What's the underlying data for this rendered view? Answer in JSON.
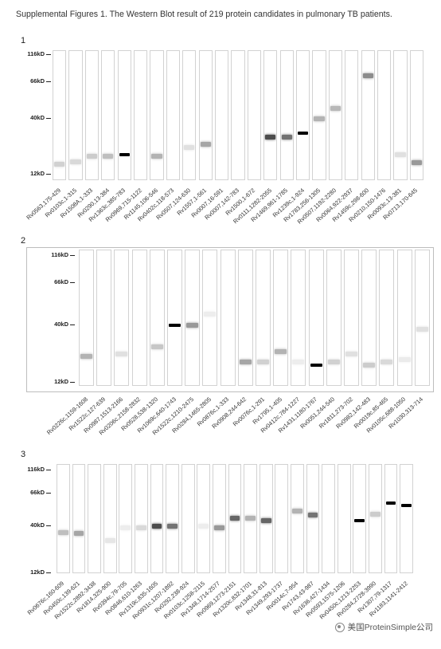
{
  "caption": "Supplemental Figures 1. The Western Blot result of 219 protein candidates in pulmonary TB patients.",
  "watermark": "美国ProteinSimple公司",
  "panels": [
    {
      "number": "1",
      "ladder": [
        "116kD",
        "66kD",
        "40kD",
        "12kD"
      ],
      "lanes": [
        {
          "label": "Rv0563,175-429",
          "bands": [
            {
              "pos": 0.87,
              "intensity": 0.18
            }
          ]
        },
        {
          "label": "Rv0103c,1-315",
          "bands": [
            {
              "pos": 0.85,
              "intensity": 0.15
            }
          ]
        },
        {
          "label": "Rv1508A,1-333",
          "bands": [
            {
              "pos": 0.81,
              "intensity": 0.2
            }
          ]
        },
        {
          "label": "Rv0290,13-384",
          "bands": [
            {
              "pos": 0.81,
              "intensity": 0.25
            }
          ]
        },
        {
          "label": "Rv1363c,385-783",
          "bands": [
            {
              "pos": 0.8,
              "intensity": 1.0
            }
          ]
        },
        {
          "label": "Rv0969,715-1122",
          "bands": []
        },
        {
          "label": "Rv1145,106-546",
          "bands": [
            {
              "pos": 0.81,
              "intensity": 0.3
            }
          ]
        },
        {
          "label": "Rv0402c,118-573",
          "bands": []
        },
        {
          "label": "Rv0507,124-630",
          "bands": [
            {
              "pos": 0.74,
              "intensity": 0.12
            }
          ]
        },
        {
          "label": "Rv1557,1-561",
          "bands": [
            {
              "pos": 0.72,
              "intensity": 0.35
            }
          ]
        },
        {
          "label": "Rv0007,16-591",
          "bands": []
        },
        {
          "label": "Rv0007,142-783",
          "bands": []
        },
        {
          "label": "Rv1500,1-672",
          "bands": []
        },
        {
          "label": "Rv0111,1282-2055",
          "bands": [
            {
              "pos": 0.66,
              "intensity": 0.7
            }
          ]
        },
        {
          "label": "Rv1469,961-1785",
          "bands": [
            {
              "pos": 0.66,
              "intensity": 0.55
            }
          ]
        },
        {
          "label": "Rv1239c,1-924",
          "bands": [
            {
              "pos": 0.63,
              "intensity": 1.0
            }
          ]
        },
        {
          "label": "Rv1783,256-1305",
          "bands": [
            {
              "pos": 0.52,
              "intensity": 0.3
            }
          ]
        },
        {
          "label": "Rv0507,1192-2280",
          "bands": [
            {
              "pos": 0.44,
              "intensity": 0.28
            }
          ]
        },
        {
          "label": "Rv0064,922-2937",
          "bands": []
        },
        {
          "label": "Rv1459c,298-600",
          "bands": [
            {
              "pos": 0.19,
              "intensity": 0.45
            }
          ]
        },
        {
          "label": "Rv0210,150-1476",
          "bands": []
        },
        {
          "label": "Rv0093c,13-381",
          "bands": [
            {
              "pos": 0.8,
              "intensity": 0.12
            }
          ]
        },
        {
          "label": "Rv0713,170-645",
          "bands": [
            {
              "pos": 0.86,
              "intensity": 0.4
            }
          ]
        }
      ]
    },
    {
      "number": "2",
      "ladder": [
        "116kD",
        "66kD",
        "40kD",
        "12kD"
      ],
      "lanes": [
        {
          "label": "Rv0226c,1159-1608",
          "bands": [
            {
              "pos": 0.78,
              "intensity": 0.3
            }
          ]
        },
        {
          "label": "Rv1522c,127-639",
          "bands": []
        },
        {
          "label": "Rv0987,1513-2166",
          "bands": [
            {
              "pos": 0.76,
              "intensity": 0.12
            }
          ]
        },
        {
          "label": "Rv0206c,2158-2832",
          "bands": []
        },
        {
          "label": "Rv0528,538-1320",
          "bands": [
            {
              "pos": 0.71,
              "intensity": 0.22
            }
          ]
        },
        {
          "label": "Rv1069c,640-1743",
          "bands": [
            {
              "pos": 0.55,
              "intensity": 1.0
            }
          ]
        },
        {
          "label": "Rv1522c,1210-2475",
          "bands": [
            {
              "pos": 0.55,
              "intensity": 0.4
            }
          ]
        },
        {
          "label": "Rv0284,1465-2805",
          "bands": [
            {
              "pos": 0.47,
              "intensity": 0.07
            }
          ]
        },
        {
          "label": "Rv0876c,1-333",
          "bands": []
        },
        {
          "label": "Rv0908,244-642",
          "bands": [
            {
              "pos": 0.82,
              "intensity": 0.35
            }
          ]
        },
        {
          "label": "Rv0076c,1-291",
          "bands": [
            {
              "pos": 0.82,
              "intensity": 0.18
            }
          ]
        },
        {
          "label": "Rv1795,1-405",
          "bands": [
            {
              "pos": 0.74,
              "intensity": 0.3
            }
          ]
        },
        {
          "label": "Rv0412c,784-1227",
          "bands": [
            {
              "pos": 0.82,
              "intensity": 0.07
            }
          ]
        },
        {
          "label": "Rv1431,1180-1767",
          "bands": [
            {
              "pos": 0.84,
              "intensity": 1.0
            }
          ]
        },
        {
          "label": "Rv0051,244-540",
          "bands": [
            {
              "pos": 0.82,
              "intensity": 0.18
            }
          ]
        },
        {
          "label": "Rv1811,273-702",
          "bands": [
            {
              "pos": 0.76,
              "intensity": 0.12
            }
          ]
        },
        {
          "label": "Rv0982,142-483",
          "bands": [
            {
              "pos": 0.84,
              "intensity": 0.2
            }
          ]
        },
        {
          "label": "Rv0019c,85-465",
          "bands": [
            {
              "pos": 0.82,
              "intensity": 0.15
            }
          ]
        },
        {
          "label": "Rv0105c,688-1050",
          "bands": [
            {
              "pos": 0.8,
              "intensity": 0.08
            }
          ]
        },
        {
          "label": "Rv1030,313-714",
          "bands": [
            {
              "pos": 0.58,
              "intensity": 0.12
            }
          ]
        }
      ]
    },
    {
      "number": "3",
      "ladder": [
        "116kD",
        "66kD",
        "40kD",
        "12kD"
      ],
      "lanes": [
        {
          "label": "Rv0676c,160-609",
          "bands": [
            {
              "pos": 0.62,
              "intensity": 0.25
            }
          ]
        },
        {
          "label": "Rv0450c,139-621",
          "bands": [
            {
              "pos": 0.63,
              "intensity": 0.35
            }
          ]
        },
        {
          "label": "Rv1522c,2892-3438",
          "bands": []
        },
        {
          "label": "Rv1814,325-900",
          "bands": [
            {
              "pos": 0.69,
              "intensity": 0.1
            }
          ]
        },
        {
          "label": "Rv0394c,79-705",
          "bands": [
            {
              "pos": 0.58,
              "intensity": 0.07
            }
          ]
        },
        {
          "label": "Rv0846,610-1263",
          "bands": [
            {
              "pos": 0.58,
              "intensity": 0.15
            }
          ]
        },
        {
          "label": "Rv1319c,835-1605",
          "bands": [
            {
              "pos": 0.56,
              "intensity": 0.7
            }
          ]
        },
        {
          "label": "Rv0931c,1207-1892",
          "bands": [
            {
              "pos": 0.56,
              "intensity": 0.55
            }
          ]
        },
        {
          "label": "Rv0292,238-924",
          "bands": []
        },
        {
          "label": "Rv0103c,1258-2115",
          "bands": [
            {
              "pos": 0.56,
              "intensity": 0.07
            }
          ]
        },
        {
          "label": "Rv1348,1714-2577",
          "bands": [
            {
              "pos": 0.58,
              "intensity": 0.4
            }
          ]
        },
        {
          "label": "Rv0969,1273-2151",
          "bands": [
            {
              "pos": 0.49,
              "intensity": 0.6
            }
          ]
        },
        {
          "label": "Rv1320c,832-1701",
          "bands": [
            {
              "pos": 0.49,
              "intensity": 0.3
            }
          ]
        },
        {
          "label": "Rv1348,31-813",
          "bands": [
            {
              "pos": 0.51,
              "intensity": 0.6
            }
          ]
        },
        {
          "label": "Rv1349,293-1737",
          "bands": []
        },
        {
          "label": "Rv0014c,7-954",
          "bands": [
            {
              "pos": 0.42,
              "intensity": 0.3
            }
          ]
        },
        {
          "label": "Rv1743,43-987",
          "bands": [
            {
              "pos": 0.46,
              "intensity": 0.55
            }
          ]
        },
        {
          "label": "Rv1636,427-1434",
          "bands": []
        },
        {
          "label": "Rv0593,1575-1206",
          "bands": []
        },
        {
          "label": "Rv0450c,1213-2253",
          "bands": [
            {
              "pos": 0.51,
              "intensity": 1.0
            }
          ]
        },
        {
          "label": "Rv0284,2728-3990",
          "bands": [
            {
              "pos": 0.45,
              "intensity": 0.2
            }
          ]
        },
        {
          "label": "Rv1307,79-1317",
          "bands": [
            {
              "pos": 0.35,
              "intensity": 1.0
            }
          ]
        },
        {
          "label": "Rv1183,1141-2412",
          "bands": [
            {
              "pos": 0.37,
              "intensity": 1.0
            }
          ]
        }
      ]
    }
  ]
}
